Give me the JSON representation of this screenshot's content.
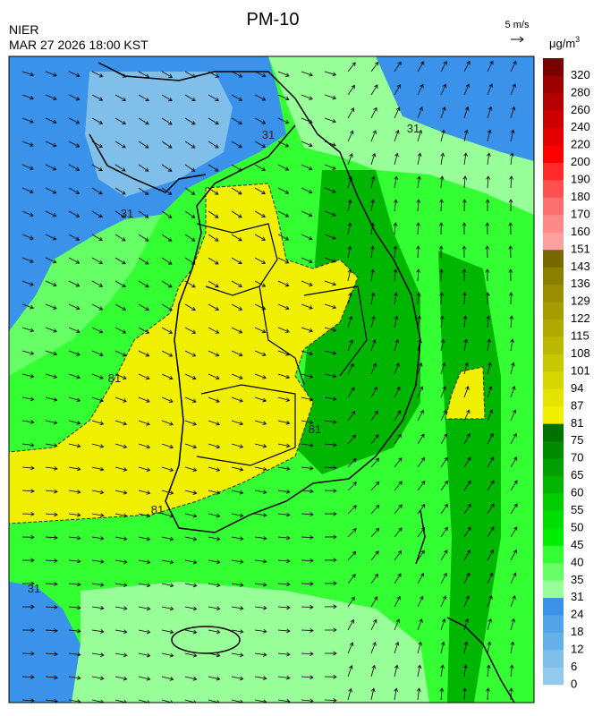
{
  "header": {
    "title": "PM-10",
    "agency": "NIER",
    "datetime": "MAR 27 2026 18:00 KST",
    "vector_scale": "5 m/s",
    "unit": "μg/m",
    "unit_exp": "3"
  },
  "contour_labels": [
    "31",
    "31",
    "31",
    "31",
    "81",
    "81",
    "81"
  ],
  "legend": [
    {
      "label": 0,
      "color": "#93c9ea"
    },
    {
      "label": 6,
      "color": "#80bfe9"
    },
    {
      "label": 12,
      "color": "#66b0ea"
    },
    {
      "label": 18,
      "color": "#52a3ea"
    },
    {
      "label": 24,
      "color": "#3a92ea"
    },
    {
      "label": 31,
      "color": "#99ff99"
    },
    {
      "label": 35,
      "color": "#66ff66"
    },
    {
      "label": 40,
      "color": "#33ff33"
    },
    {
      "label": 45,
      "color": "#00ee00"
    },
    {
      "label": 50,
      "color": "#00dd00"
    },
    {
      "label": 55,
      "color": "#00cc00"
    },
    {
      "label": 60,
      "color": "#00b600"
    },
    {
      "label": 65,
      "color": "#00a000"
    },
    {
      "label": 70,
      "color": "#008a00"
    },
    {
      "label": 75,
      "color": "#007200"
    },
    {
      "label": 81,
      "color": "#f0f000"
    },
    {
      "label": 87,
      "color": "#e4e400"
    },
    {
      "label": 94,
      "color": "#d6d600"
    },
    {
      "label": 101,
      "color": "#c8c800"
    },
    {
      "label": 108,
      "color": "#bcb800"
    },
    {
      "label": 115,
      "color": "#b0aa00"
    },
    {
      "label": 122,
      "color": "#a49c00"
    },
    {
      "label": 129,
      "color": "#988e00"
    },
    {
      "label": 136,
      "color": "#8a8000"
    },
    {
      "label": 143,
      "color": "#786800"
    },
    {
      "label": 151,
      "color": "#ffa0a0"
    },
    {
      "label": 160,
      "color": "#ff8888"
    },
    {
      "label": 170,
      "color": "#ff7070"
    },
    {
      "label": 180,
      "color": "#ff5050"
    },
    {
      "label": 190,
      "color": "#ff2a2a"
    },
    {
      "label": 200,
      "color": "#ff0000"
    },
    {
      "label": 220,
      "color": "#e40000"
    },
    {
      "label": 240,
      "color": "#cc0000"
    },
    {
      "label": 260,
      "color": "#b40000"
    },
    {
      "label": 280,
      "color": "#9c0000"
    },
    {
      "label": 320,
      "color": "#780000"
    }
  ]
}
